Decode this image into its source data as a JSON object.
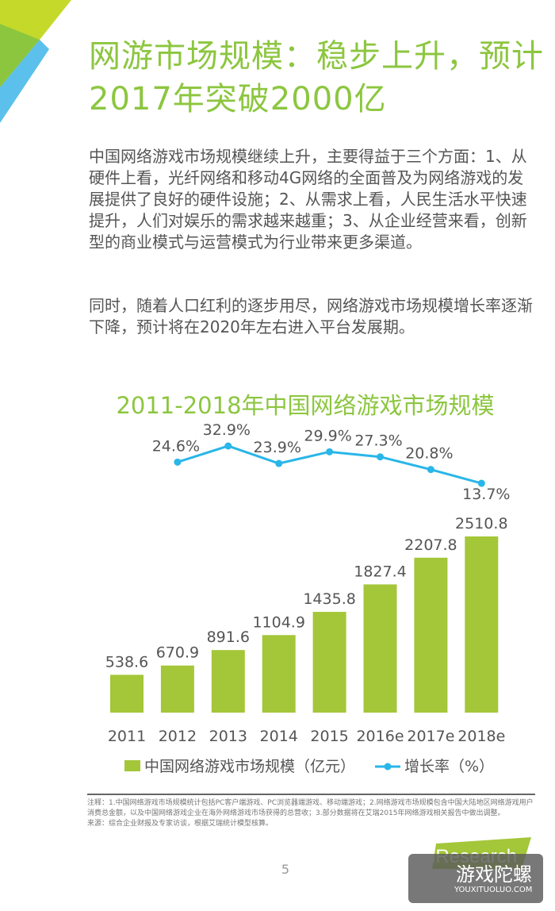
{
  "title": "网游市场规模：稳步上升，预计2017年突破2000亿",
  "paragraphs": [
    "中国网络游戏市场规模继续上升，主要得益于三个方面：1、从硬件上看，光纤网络和移动4G网络的全面普及为网络游戏的发展提供了良好的硬件设施；2、从需求上看，人民生活水平快速提升，人们对娱乐的需求越来越重；3、从企业经营来看，创新型的商业模式与运营模式为行业带来更多渠道。",
    "同时，随着人口红利的逐步用尽，网络游戏市场规模增长率逐渐下降，预计将在2020年左右进入平台发展期。"
  ],
  "chart_data": {
    "type": "bar",
    "title": "2011-2018年中国网络游戏市场规模",
    "categories": [
      "2011",
      "2012",
      "2013",
      "2014",
      "2015",
      "2016e",
      "2017e",
      "2018e"
    ],
    "series": [
      {
        "name": "中国网络游戏市场规模（亿元）",
        "type": "bar",
        "values": [
          538.6,
          670.9,
          891.6,
          1104.9,
          1435.8,
          1827.4,
          2207.8,
          2510.8
        ],
        "color": "#a4c639"
      },
      {
        "name": "增长率（%）",
        "type": "line",
        "values": [
          null,
          24.6,
          32.9,
          23.9,
          29.9,
          27.3,
          20.8,
          13.7
        ],
        "labels": [
          "",
          "24.6%",
          "32.9%",
          "23.9%",
          "29.9%",
          "27.3%",
          "20.8%",
          "13.7%"
        ],
        "color": "#29b6e8"
      }
    ],
    "legend": "bottom",
    "grid": false
  },
  "notes": "注释：1.中国网络游戏市场规模统计包括PC客户端游戏、PC浏览器端游戏、移动端游戏；2.网络游戏市场规模包含中国大陆地区网络游戏用户消费总金额，以及中国网络游戏企业在海外网络游戏市场获得的总营收；3.部分数据将在艾瑞2015年网络游戏相关报告中做出调整。",
  "source": "来源：综合企业财报及专家访谈，根据艾瑞统计模型核算。",
  "page_number": "5",
  "logo": "iResearch",
  "watermark": {
    "title": "游戏陀螺",
    "url": "YOUXITUOLUO.COM"
  }
}
